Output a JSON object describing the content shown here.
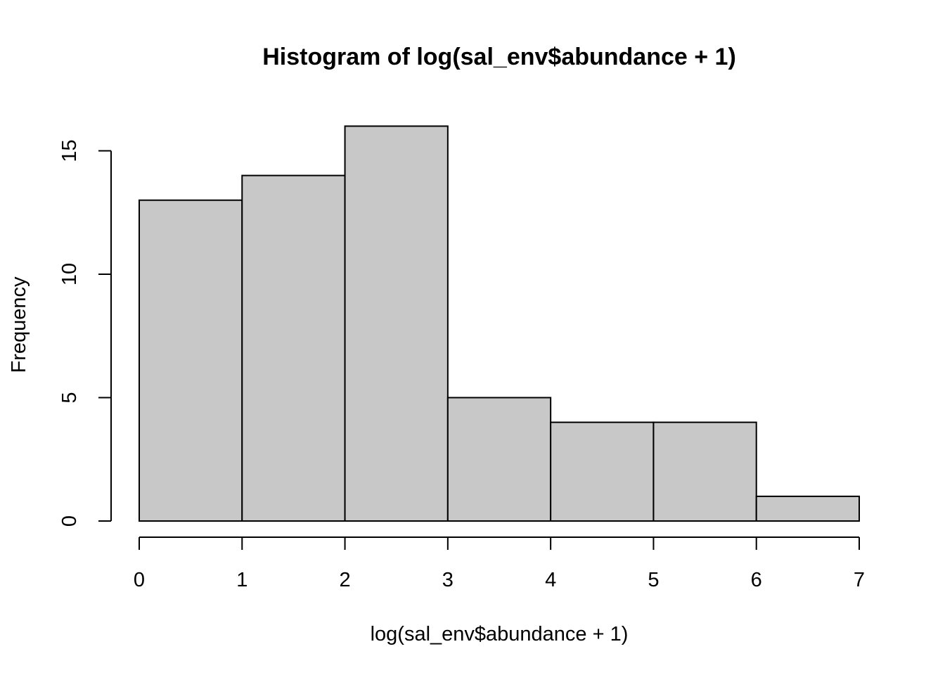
{
  "chart_data": {
    "type": "bar",
    "title": "Histogram of log(sal_env$abundance + 1)",
    "xlabel": "log(sal_env$abundance + 1)",
    "ylabel": "Frequency",
    "bins": [
      {
        "start": 0,
        "end": 1,
        "count": 13
      },
      {
        "start": 1,
        "end": 2,
        "count": 14
      },
      {
        "start": 2,
        "end": 3,
        "count": 16
      },
      {
        "start": 3,
        "end": 4,
        "count": 5
      },
      {
        "start": 4,
        "end": 5,
        "count": 4
      },
      {
        "start": 5,
        "end": 6,
        "count": 4
      },
      {
        "start": 6,
        "end": 7,
        "count": 1
      }
    ],
    "xlim": [
      0,
      7
    ],
    "ylim": [
      0,
      16
    ],
    "x_ticks": [
      0,
      1,
      2,
      3,
      4,
      5,
      6,
      7
    ],
    "y_ticks": [
      0,
      5,
      10,
      15
    ],
    "grid": false,
    "bar_color": "#c8c8c8",
    "edge_color": "#000000"
  }
}
